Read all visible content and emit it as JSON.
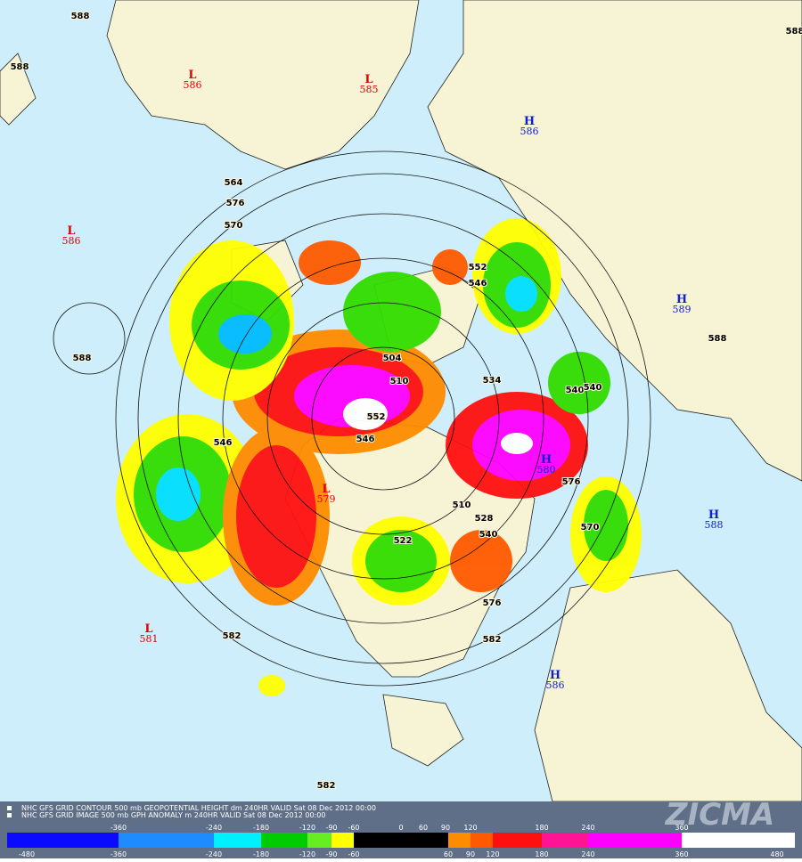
{
  "map": {
    "pressure_centers": [
      {
        "letter": "L",
        "value": "586",
        "color": "#e00000"
      },
      {
        "letter": "L",
        "value": "585",
        "color": "#e00000"
      },
      {
        "letter": "H",
        "value": "586",
        "color": "#1020d0"
      },
      {
        "letter": "L",
        "value": "586",
        "color": "#e00000"
      },
      {
        "letter": "H",
        "value": "589",
        "color": "#1020d0"
      },
      {
        "letter": "H",
        "value": "580",
        "color": "#1020d0"
      },
      {
        "letter": "H",
        "value": "588",
        "color": "#1020d0"
      },
      {
        "letter": "L",
        "value": "581",
        "color": "#e00000"
      },
      {
        "letter": "H",
        "value": "586",
        "color": "#1020d0"
      },
      {
        "letter": "L",
        "value": "579",
        "color": "#e00000"
      }
    ],
    "contour_labels": [
      "588",
      "588",
      "588",
      "588",
      "588",
      "582",
      "582",
      "582",
      "570",
      "576",
      "576",
      "570",
      "564",
      "552",
      "546",
      "540",
      "522",
      "510",
      "504",
      "510",
      "546",
      "552",
      "534",
      "576",
      "528",
      "540",
      "540",
      "546"
    ]
  },
  "footer": {
    "lines": [
      "NHC GFS GRID CONTOUR 500 mb GEOPOTENTIAL HEIGHT dm 240HR VALID Sat 08 Dec 2012 00:00",
      "NHC GFS GRID IMAGE 500 mb GPH ANOMALY m 240HR VALID Sat 08 Dec 2012 00:00"
    ],
    "logo": "ZICMA"
  },
  "legend": {
    "top_labels": [
      -360,
      -240,
      -180,
      -120,
      -90,
      -60,
      0,
      60,
      90,
      120,
      180,
      240,
      360
    ],
    "edges": [
      -480,
      -360,
      -240,
      -180,
      -120,
      -90,
      -60,
      60,
      90,
      120,
      180,
      240,
      360,
      480
    ],
    "colors": [
      "#0a0aff",
      "#1e8cff",
      "#00f0ff",
      "#00cc00",
      "#66ee22",
      "#ffff00",
      "#000000",
      "#ff8c00",
      "#ff5a00",
      "#ff1010",
      "#ff1493",
      "#ff00ff",
      "#ffffff"
    ]
  }
}
